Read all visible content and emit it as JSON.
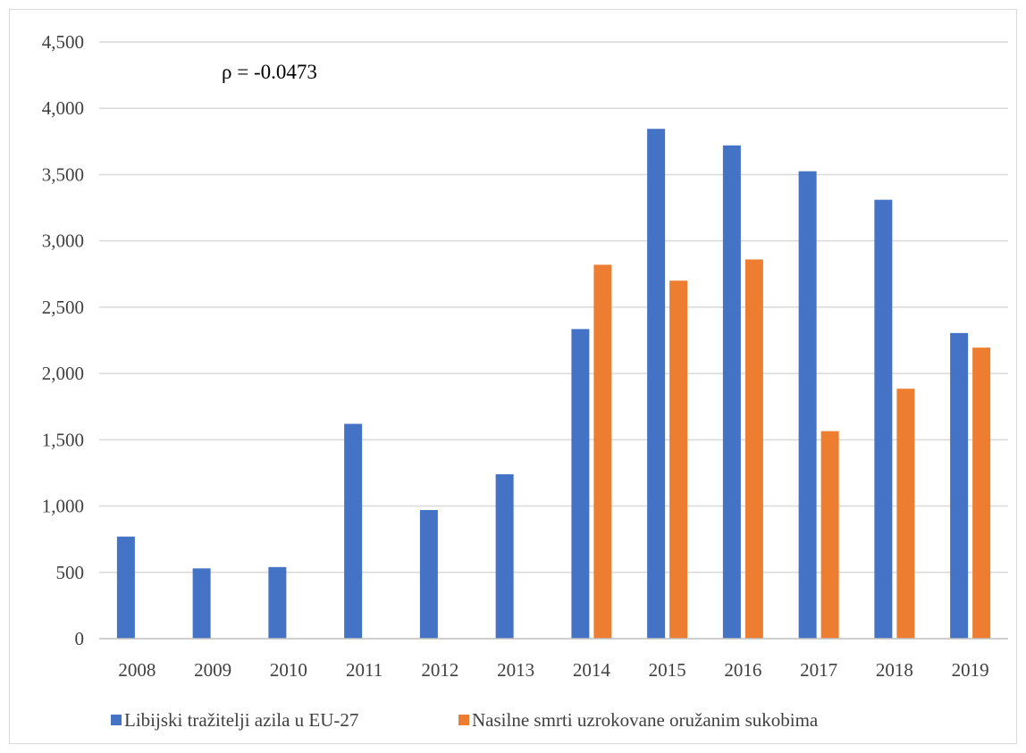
{
  "chart_data": {
    "type": "bar",
    "title": "",
    "xlabel": "",
    "ylabel": "",
    "ylim": [
      0,
      4500
    ],
    "yticks": [
      0,
      500,
      1000,
      1500,
      2000,
      2500,
      3000,
      3500,
      4000,
      4500
    ],
    "ytick_labels": [
      "0",
      "500",
      "1,000",
      "1,500",
      "2,000",
      "2,500",
      "3,000",
      "3,500",
      "4,000",
      "4,500"
    ],
    "categories": [
      "2008",
      "2009",
      "2010",
      "2011",
      "2012",
      "2013",
      "2014",
      "2015",
      "2016",
      "2017",
      "2018",
      "2019"
    ],
    "series": [
      {
        "name": "Libijski tražitelji azila u EU-27",
        "color": "#4472c4",
        "values": [
          770,
          530,
          540,
          1620,
          970,
          1240,
          2335,
          3845,
          3720,
          3525,
          3310,
          2305
        ]
      },
      {
        "name": "Nasilne smrti uzrokovane oružanim sukobima",
        "color": "#ed7d31",
        "values": [
          null,
          null,
          null,
          null,
          null,
          null,
          2820,
          2700,
          2860,
          1565,
          1885,
          2195
        ]
      }
    ],
    "annotation": "ρ = -0.0473",
    "grid": true,
    "legend_position": "bottom-left"
  }
}
